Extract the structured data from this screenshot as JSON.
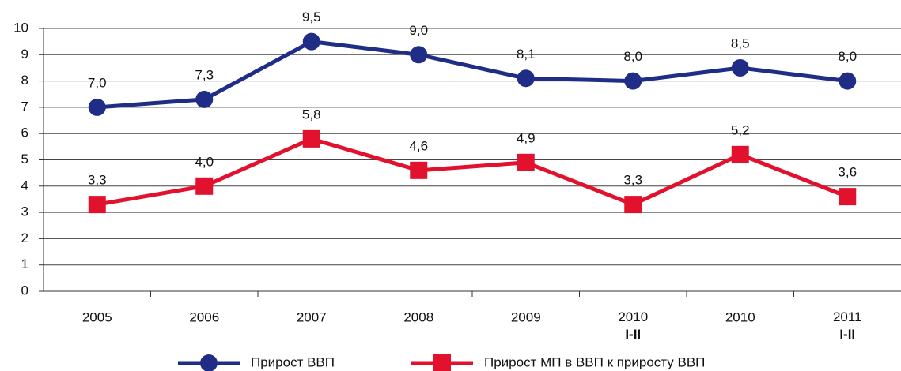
{
  "chart_data": {
    "type": "line",
    "categories": [
      "2005",
      "2006",
      "2007",
      "2008",
      "2009",
      "2010\nI-II",
      "2010",
      "2011\nI-II"
    ],
    "series": [
      {
        "name": "Прирост ВВП",
        "color": "#1f2d87",
        "marker": "circle",
        "values": [
          7.0,
          7.3,
          9.5,
          9.0,
          8.1,
          8.0,
          8.5,
          8.0
        ],
        "value_labels": [
          "7,0",
          "7,3",
          "9,5",
          "9,0",
          "8,1",
          "8,0",
          "8,5",
          "8,0"
        ]
      },
      {
        "name": "Прирост МП в ВВП к приросту ВВП",
        "color": "#e2122e",
        "marker": "square",
        "values": [
          3.3,
          4.0,
          5.8,
          4.6,
          4.9,
          3.3,
          5.2,
          3.6
        ],
        "value_labels": [
          "3,3",
          "4,0",
          "5,8",
          "4,6",
          "4,9",
          "3,3",
          "5,2",
          "3,6"
        ]
      }
    ],
    "ylim": [
      0,
      10
    ],
    "yticks": [
      0,
      1,
      2,
      3,
      4,
      5,
      6,
      7,
      8,
      9,
      10
    ],
    "grid": true,
    "legend": "bottom"
  }
}
